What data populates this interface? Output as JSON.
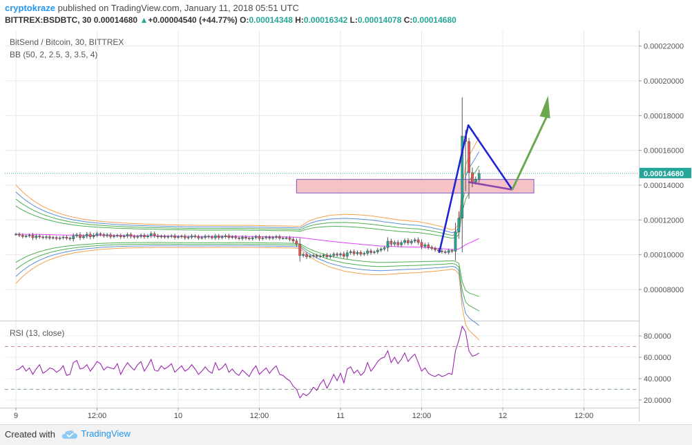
{
  "header": {
    "author": "cryptokraze",
    "published_text": "published on TradingView.com, January 11, 2018 05:51 UTC",
    "symbol_interval": "BITTREX:BSDBTC, 30",
    "last_price": "0.00014680",
    "change_arrow": "▲",
    "change": "+0.00004540 (+44.77%)",
    "o_label": "O:",
    "o_value": "0.00014348",
    "h_label": "H:",
    "h_value": "0.00016342",
    "l_label": "L:",
    "l_value": "0.00014078",
    "c_label": "C:",
    "c_value": "0.00014680"
  },
  "legend": {
    "title": "BitSend / Bitcoin, 30, BITTREX",
    "bb": "BB (50, 2, 2.5, 3, 3.5, 4)",
    "rsi": "RSI (13, close)"
  },
  "footer": {
    "created_with": "Created with",
    "brand": "TradingView"
  },
  "colors": {
    "up": "#26a69a",
    "down": "#ef5350",
    "bb_green": "#4caf50",
    "bb_blue": "#5b8fd9",
    "bb_orange": "#f5a04a",
    "bb_pink": "#e040fb",
    "rsi_line": "#9c27b0",
    "zone_fill": "#f4c2c7",
    "zone_stroke": "#7e57c2",
    "drawing_blue": "#1e22d6",
    "drawing_purple": "#8e44ad",
    "arrow_green": "#6aa84f",
    "price_tag": "#26a69a"
  },
  "chart_data": [
    {
      "type": "candlestick",
      "title": "BitSend / Bitcoin, 30, BITTREX",
      "y_ticks": [
        "0.00022000",
        "0.00020000",
        "0.00018000",
        "0.00016000",
        "0.00014000",
        "0.00012000",
        "0.00010000",
        "0.00008000"
      ],
      "y_tick_values": [
        0.00022,
        0.0002,
        0.00018,
        0.00016,
        0.00014,
        0.00012,
        0.0001,
        8e-05
      ],
      "ylim": [
        6.25e-05,
        0.000229
      ],
      "last_price_label": "0.00014680",
      "last_price": 0.0001468,
      "x_ticks": [
        "9",
        "12:00",
        "10",
        "12:00",
        "11",
        "12:00",
        "12",
        "12:00"
      ],
      "x_tick_hours": [
        0,
        12,
        24,
        36,
        48,
        60,
        72,
        84
      ],
      "candles": {
        "t_start_hours": 0,
        "t_step_hours": 0.5,
        "close": [
          0.0001118,
          0.0001112,
          0.0001105,
          0.0001108,
          0.0001112,
          0.0001098,
          0.0001108,
          0.0001102,
          0.0001098,
          0.0001103,
          0.0001096,
          0.0001099,
          0.0001093,
          0.0001097,
          0.0001101,
          0.0001095,
          0.0001091,
          0.0001108,
          0.0001115,
          0.0001099,
          0.0001106,
          0.0001118,
          0.0001103,
          0.0001112,
          0.0001121,
          0.0001116,
          0.0001109,
          0.0001115,
          0.0001104,
          0.0001108,
          0.0001111,
          0.0001103,
          0.0001107,
          0.0001116,
          0.0001106,
          0.0001101,
          0.0001105,
          0.0001112,
          0.0001103,
          0.0001109,
          0.0001121,
          0.0001109,
          0.0001103,
          0.0001106,
          0.0001101,
          0.0001105,
          0.0001109,
          0.0001099,
          0.0001103,
          0.0001107,
          0.0001097,
          0.0001101,
          0.0001108,
          0.0001104,
          0.0001096,
          0.0001099,
          0.0001106,
          0.0001102,
          0.0001097,
          0.0001108,
          0.0001098,
          0.0001103,
          0.0001109,
          0.0001099,
          0.0001103,
          0.0001097,
          0.0001093,
          0.0001101,
          0.0001095,
          0.0001092,
          0.0001098,
          0.0001104,
          0.0001093,
          0.0001097,
          0.0001101,
          0.0001095,
          0.0001099,
          0.0001104,
          0.0001095,
          0.0001096,
          0.0001097,
          0.0001089,
          0.0001079,
          0.0001061,
          9.95e-05,
          0.0001002,
          9.89e-05,
          9.93e-05,
          9.96e-05,
          9.9e-05,
          9.93e-05,
          9.98e-05,
          9.88e-05,
          9.95e-05,
          0.0001004,
          9.98e-05,
          0.0001005,
          9.91e-05,
          0.0001011,
          0.0001018,
          0.0001006,
          0.0001013,
          0.0001003,
          0.0001008,
          0.0001022,
          0.0001012,
          0.0001016,
          0.0001026,
          0.0001033,
          0.0001041,
          0.0001078,
          0.0001061,
          0.0001071,
          0.0001057,
          0.000107,
          0.0001082,
          0.0001068,
          0.0001078,
          0.0001086,
          0.0001071,
          0.0001048,
          0.0001057,
          0.0001043,
          0.0001036,
          0.0001028,
          0.0001022,
          0.0001017,
          0.0001013,
          0.0001024,
          0.000102,
          0.0001131,
          0.000121,
          0.0001682,
          0.0001651,
          0.0001472,
          0.0001418,
          0.0001435,
          0.0001468
        ]
      }
    },
    {
      "type": "line",
      "title": "RSI (13, close)",
      "y_ticks": [
        "80.0000",
        "60.0000",
        "40.0000",
        "20.0000"
      ],
      "y_tick_values": [
        80,
        60,
        40,
        20
      ],
      "ylim": [
        12.8,
        93.0
      ],
      "bands": [
        70,
        30
      ],
      "series": [
        {
          "values": [
            48,
            49,
            52,
            47,
            50,
            44,
            49,
            53,
            45,
            47,
            50,
            49,
            46,
            48,
            52,
            43,
            44,
            55,
            57,
            49,
            50,
            53,
            47,
            51,
            56,
            54,
            48,
            51,
            50,
            49,
            54,
            44,
            50,
            55,
            51,
            48,
            53,
            56,
            47,
            52,
            58,
            48,
            47,
            52,
            49,
            51,
            54,
            46,
            49,
            52,
            47,
            49,
            53,
            49,
            44,
            47,
            51,
            47,
            45,
            55,
            48,
            50,
            54,
            46,
            49,
            45,
            43,
            48,
            45,
            42,
            48,
            52,
            44,
            47,
            50,
            45,
            49,
            52,
            44,
            43,
            40,
            38,
            33,
            30,
            22,
            26,
            24,
            27,
            32,
            29,
            35,
            39,
            31,
            37,
            44,
            38,
            45,
            36,
            49,
            51,
            45,
            48,
            43,
            46,
            55,
            47,
            51,
            56,
            59,
            60,
            66,
            55,
            60,
            54,
            58,
            64,
            56,
            60,
            63,
            55,
            47,
            50,
            45,
            43,
            42,
            44,
            42,
            43,
            45,
            44,
            66,
            76,
            89,
            84,
            66,
            61,
            62,
            64
          ]
        }
      ]
    }
  ]
}
